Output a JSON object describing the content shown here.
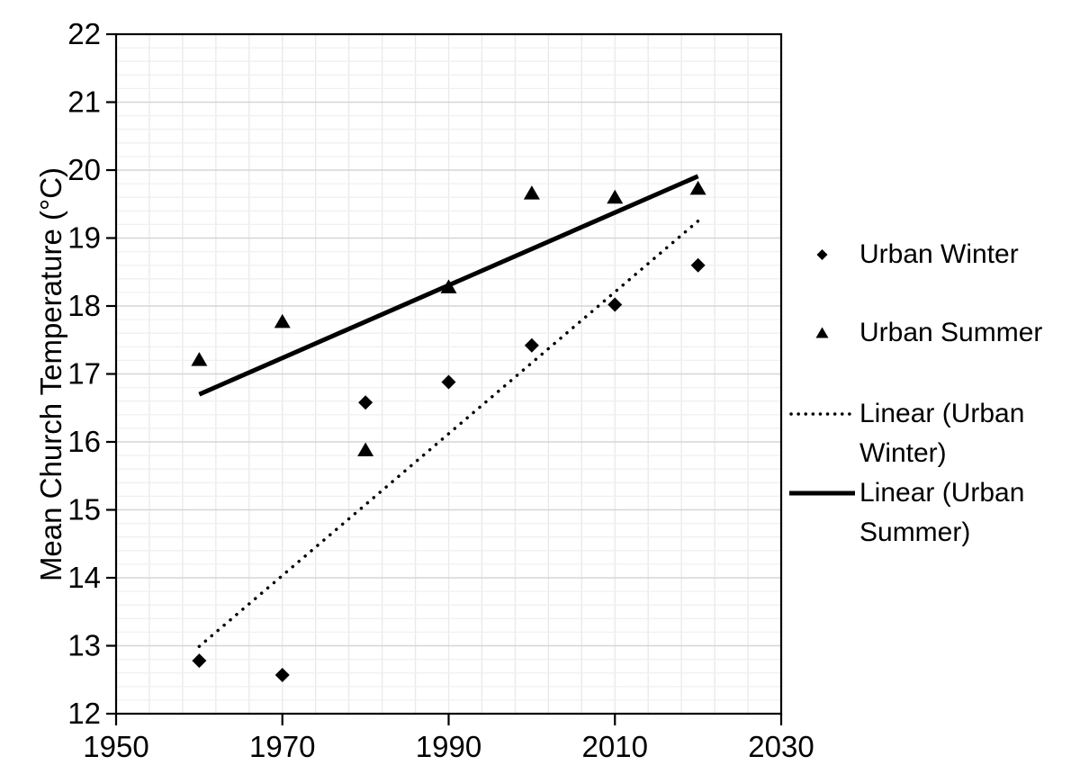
{
  "chart_data": {
    "type": "scatter",
    "title": "",
    "xlabel": "",
    "ylabel": "Mean Church Temperature (°C)",
    "xlim": [
      1950,
      2030
    ],
    "ylim": [
      12,
      22
    ],
    "x_ticks": [
      1950,
      1970,
      1990,
      2010,
      2030
    ],
    "y_ticks": [
      12,
      13,
      14,
      15,
      16,
      17,
      18,
      19,
      20,
      21,
      22
    ],
    "x_minor_unit": 4,
    "y_minor_unit": 0.2,
    "grid": "on",
    "legend_position": "right",
    "series": [
      {
        "name": "Urban Winter",
        "marker": "diamond",
        "color": "#000000",
        "x": [
          1960,
          1970,
          1980,
          1990,
          2000,
          2010,
          2020
        ],
        "y": [
          12.78,
          12.57,
          16.58,
          16.88,
          17.42,
          18.02,
          18.6
        ]
      },
      {
        "name": "Urban Summer",
        "marker": "triangle",
        "color": "#000000",
        "x": [
          1960,
          1970,
          1980,
          1990,
          2000,
          2010,
          2020
        ],
        "y": [
          17.21,
          17.77,
          15.88,
          18.28,
          19.66,
          19.6,
          19.73
        ]
      }
    ],
    "trendlines": [
      {
        "name": "Linear (Urban Winter)",
        "style": "dotted",
        "color": "#000000",
        "x": [
          1960,
          2020
        ],
        "y": [
          12.99,
          19.25
        ]
      },
      {
        "name": "Linear (Urban Summer)",
        "style": "solid",
        "color": "#000000",
        "x": [
          1960,
          2020
        ],
        "y": [
          16.7,
          19.91
        ]
      }
    ],
    "colors": {
      "grid_minor": "#f0f0f0",
      "grid_vertical": "#e9e9e9",
      "grid_major": "#d6d6d6",
      "axis": "#000000",
      "text": "#000000"
    }
  },
  "legend": {
    "items": [
      {
        "label": "Urban Winter",
        "sample": "diamond-marker"
      },
      {
        "label": "Urban Summer",
        "sample": "triangle-marker"
      },
      {
        "label": "Linear (Urban Winter)",
        "sample": "dotted-line"
      },
      {
        "label": "Linear (Urban Summer)",
        "sample": "solid-line"
      }
    ]
  }
}
